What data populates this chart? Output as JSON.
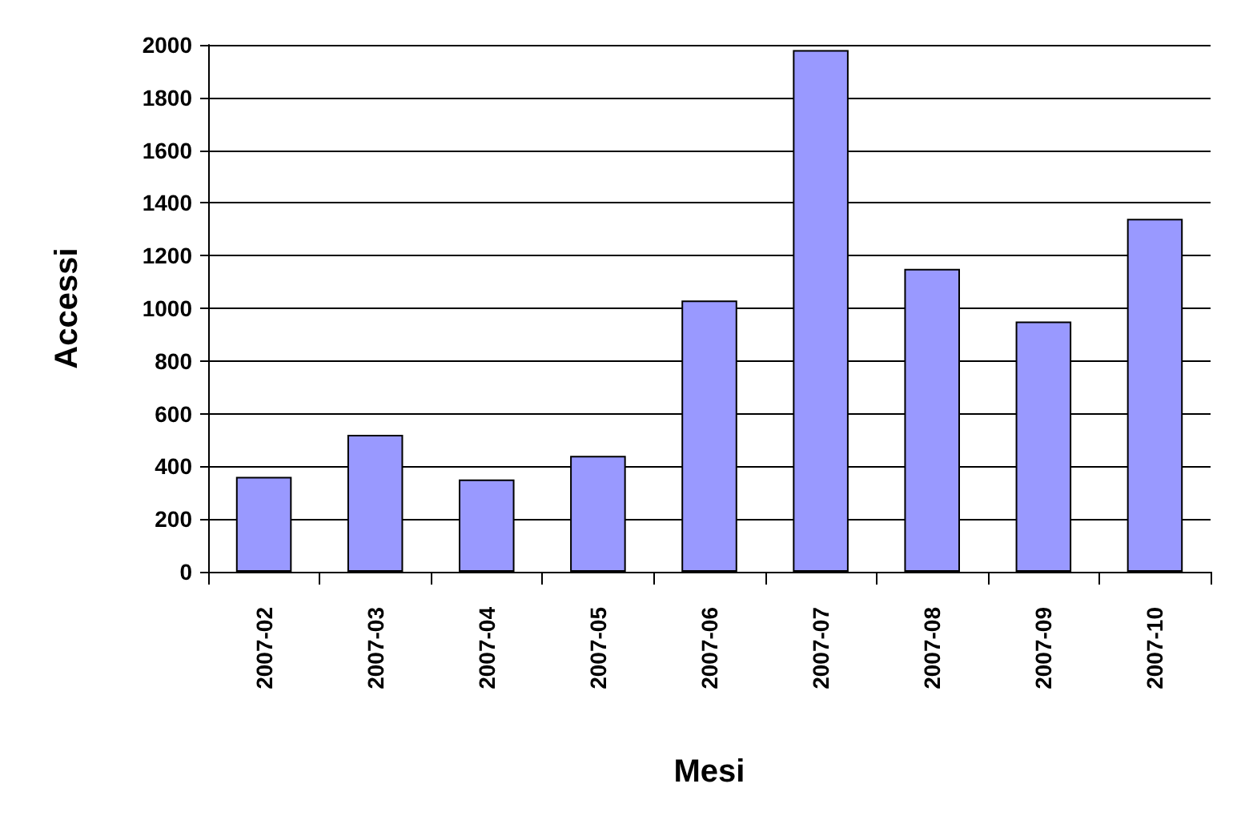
{
  "chart_data": {
    "type": "bar",
    "xlabel": "Mesi",
    "ylabel": "Accessi",
    "categories": [
      "2007-02",
      "2007-03",
      "2007-04",
      "2007-05",
      "2007-06",
      "2007-07",
      "2007-08",
      "2007-09",
      "2007-10"
    ],
    "values": [
      360,
      520,
      350,
      440,
      1030,
      1980,
      1150,
      950,
      1340
    ],
    "color": "#9999ff",
    "ylim": [
      0,
      2000
    ],
    "yticks": [
      0,
      200,
      400,
      600,
      800,
      1000,
      1200,
      1400,
      1600,
      1800,
      2000
    ],
    "grid": "y"
  }
}
